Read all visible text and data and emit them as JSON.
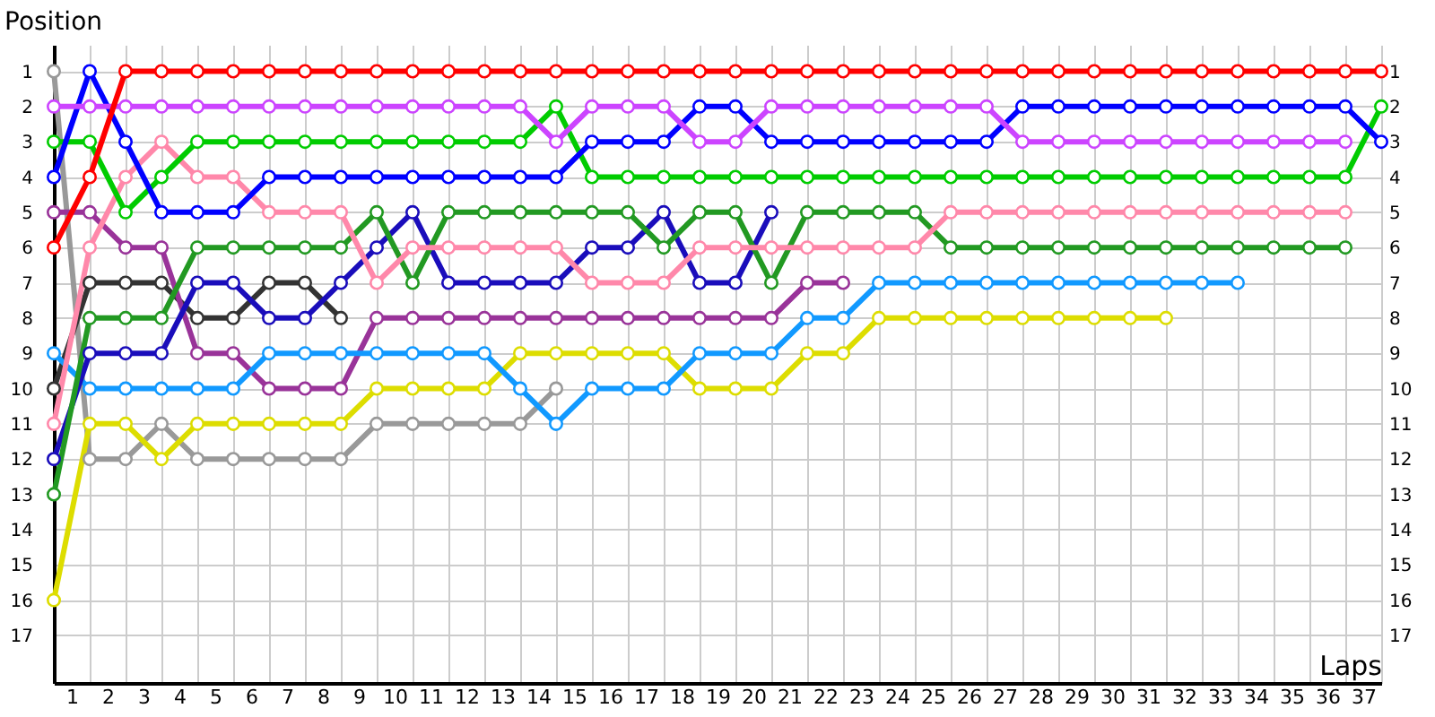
{
  "chart_data": {
    "type": "line",
    "ylabel": "Position",
    "xlabel": "Laps",
    "x": [
      0,
      1,
      2,
      3,
      4,
      5,
      6,
      7,
      8,
      9,
      10,
      11,
      12,
      13,
      14,
      15,
      16,
      17,
      18,
      19,
      20,
      21,
      22,
      23,
      24,
      25,
      26,
      27,
      28,
      29,
      30,
      31,
      32,
      33,
      34,
      35,
      36,
      37
    ],
    "xlim": [
      0,
      37
    ],
    "xticks": [
      {
        "value": 0,
        "label": null
      },
      {
        "value": 0.5,
        "label": "1"
      },
      {
        "value": 1,
        "label": null
      },
      {
        "value": 1.5,
        "label": "2"
      },
      {
        "value": 2,
        "label": null
      },
      {
        "value": 2.5,
        "label": "3"
      },
      {
        "value": 3,
        "label": null
      },
      {
        "value": 3.5,
        "label": "4"
      },
      {
        "value": 4,
        "label": null
      },
      {
        "value": 4.5,
        "label": "5"
      },
      {
        "value": 5,
        "label": null
      },
      {
        "value": 5.5,
        "label": "6"
      },
      {
        "value": 6,
        "label": null
      },
      {
        "value": 6.5,
        "label": "7"
      },
      {
        "value": 7,
        "label": null
      },
      {
        "value": 7.5,
        "label": "8"
      },
      {
        "value": 8,
        "label": null
      },
      {
        "value": 8.5,
        "label": "9"
      },
      {
        "value": 9,
        "label": null
      },
      {
        "value": 9.5,
        "label": "10"
      },
      {
        "value": 10,
        "label": null
      },
      {
        "value": 10.5,
        "label": "11"
      },
      {
        "value": 11,
        "label": null
      },
      {
        "value": 11.5,
        "label": "12"
      },
      {
        "value": 12,
        "label": null
      },
      {
        "value": 12.5,
        "label": "13"
      },
      {
        "value": 13,
        "label": null
      },
      {
        "value": 13.5,
        "label": "14"
      },
      {
        "value": 14,
        "label": null
      },
      {
        "value": 14.5,
        "label": "15"
      },
      {
        "value": 15,
        "label": null
      },
      {
        "value": 15.5,
        "label": "16"
      },
      {
        "value": 16,
        "label": null
      },
      {
        "value": 16.5,
        "label": "17"
      },
      {
        "value": 17,
        "label": null
      },
      {
        "value": 17.5,
        "label": "18"
      },
      {
        "value": 18,
        "label": null
      },
      {
        "value": 18.5,
        "label": "19"
      },
      {
        "value": 19,
        "label": null
      },
      {
        "value": 19.5,
        "label": "20"
      },
      {
        "value": 20,
        "label": null
      },
      {
        "value": 20.5,
        "label": "21"
      },
      {
        "value": 21,
        "label": null
      },
      {
        "value": 21.5,
        "label": "22"
      },
      {
        "value": 22,
        "label": null
      },
      {
        "value": 22.5,
        "label": "23"
      },
      {
        "value": 23,
        "label": null
      },
      {
        "value": 23.5,
        "label": "24"
      },
      {
        "value": 24,
        "label": null
      },
      {
        "value": 24.5,
        "label": "25"
      },
      {
        "value": 25,
        "label": null
      },
      {
        "value": 25.5,
        "label": "26"
      },
      {
        "value": 26,
        "label": null
      },
      {
        "value": 26.5,
        "label": "27"
      },
      {
        "value": 27,
        "label": null
      },
      {
        "value": 27.5,
        "label": "28"
      },
      {
        "value": 28,
        "label": null
      },
      {
        "value": 28.5,
        "label": "29"
      },
      {
        "value": 29,
        "label": null
      },
      {
        "value": 29.5,
        "label": "30"
      },
      {
        "value": 30,
        "label": null
      },
      {
        "value": 30.5,
        "label": "31"
      },
      {
        "value": 31,
        "label": null
      },
      {
        "value": 31.5,
        "label": "32"
      },
      {
        "value": 32,
        "label": null
      },
      {
        "value": 32.5,
        "label": "33"
      },
      {
        "value": 33,
        "label": null
      },
      {
        "value": 33.5,
        "label": "34"
      },
      {
        "value": 34,
        "label": null
      },
      {
        "value": 34.5,
        "label": "35"
      },
      {
        "value": 35,
        "label": null
      },
      {
        "value": 35.5,
        "label": "36"
      },
      {
        "value": 36,
        "label": null
      },
      {
        "value": 36.5,
        "label": "37"
      },
      {
        "value": 37,
        "label": null
      }
    ],
    "ylim": [
      18.35,
      0.25
    ],
    "yticks": [
      1,
      2,
      3,
      4,
      5,
      6,
      7,
      8,
      9,
      10,
      11,
      12,
      13,
      14,
      15,
      16,
      17
    ],
    "y2lim": [
      18.35,
      0.25
    ],
    "y2ticks": [
      1,
      2,
      3,
      4,
      5,
      6,
      7,
      8,
      9,
      10,
      11,
      12,
      13,
      14,
      15,
      16,
      17
    ],
    "grid": true,
    "marker": "circle",
    "line_style": "solid",
    "series": [
      {
        "color": "#999999",
        "values": [
          1,
          12,
          12,
          11,
          12,
          12,
          12,
          12,
          12,
          11,
          11,
          11,
          11,
          11,
          10,
          null,
          null,
          null,
          null,
          null,
          null,
          null,
          null,
          null,
          null,
          null,
          null,
          null,
          null,
          null,
          null,
          null,
          null,
          null,
          null,
          null,
          null,
          null
        ]
      },
      {
        "color": "#333333",
        "values": [
          10,
          7,
          7,
          7,
          8,
          8,
          7,
          7,
          8,
          null,
          null,
          null,
          null,
          null,
          null,
          null,
          null,
          null,
          null,
          null,
          null,
          null,
          null,
          null,
          null,
          null,
          null,
          null,
          null,
          null,
          null,
          null,
          null,
          null,
          null,
          null,
          null,
          null
        ]
      },
      {
        "color": "#993399",
        "values": [
          5,
          5,
          6,
          6,
          9,
          9,
          10,
          10,
          10,
          8,
          8,
          8,
          8,
          8,
          8,
          8,
          8,
          8,
          8,
          8,
          8,
          7,
          7,
          null,
          null,
          null,
          null,
          null,
          null,
          null,
          null,
          null,
          null,
          null,
          null,
          null,
          null,
          null
        ]
      },
      {
        "color": "#dddd00",
        "values": [
          16,
          11,
          11,
          12,
          11,
          11,
          11,
          11,
          11,
          10,
          10,
          10,
          10,
          9,
          9,
          9,
          9,
          9,
          10,
          10,
          10,
          9,
          9,
          8,
          8,
          8,
          8,
          8,
          8,
          8,
          8,
          8,
          null,
          null,
          null,
          null,
          null,
          null
        ]
      },
      {
        "color": "#1199ff",
        "values": [
          9,
          10,
          10,
          10,
          10,
          10,
          9,
          9,
          9,
          9,
          9,
          9,
          9,
          10,
          11,
          10,
          10,
          10,
          9,
          9,
          9,
          8,
          8,
          7,
          7,
          7,
          7,
          7,
          7,
          7,
          7,
          7,
          7,
          7,
          null,
          null,
          null,
          null
        ]
      },
      {
        "color": "#1a0dbb",
        "values": [
          12,
          9,
          9,
          9,
          7,
          7,
          8,
          8,
          7,
          6,
          5,
          7,
          7,
          7,
          7,
          6,
          6,
          5,
          7,
          7,
          5,
          null,
          null,
          null,
          null,
          null,
          null,
          null,
          null,
          null,
          null,
          null,
          null,
          null,
          null,
          null,
          null,
          null
        ]
      },
      {
        "color": "#229922",
        "values": [
          13,
          8,
          8,
          8,
          6,
          6,
          6,
          6,
          6,
          5,
          7,
          5,
          5,
          5,
          5,
          5,
          5,
          6,
          5,
          5,
          7,
          5,
          5,
          5,
          5,
          6,
          6,
          6,
          6,
          6,
          6,
          6,
          6,
          6,
          6,
          6,
          6,
          null
        ]
      },
      {
        "color": "#ff88aa",
        "values": [
          11,
          6,
          4,
          3,
          4,
          4,
          5,
          5,
          5,
          7,
          6,
          6,
          6,
          6,
          6,
          7,
          7,
          7,
          6,
          6,
          6,
          6,
          6,
          6,
          6,
          5,
          5,
          5,
          5,
          5,
          5,
          5,
          5,
          5,
          5,
          5,
          5,
          null
        ]
      },
      {
        "color": "#00cc00",
        "values": [
          3,
          3,
          5,
          4,
          3,
          3,
          3,
          3,
          3,
          3,
          3,
          3,
          3,
          3,
          2,
          4,
          4,
          4,
          4,
          4,
          4,
          4,
          4,
          4,
          4,
          4,
          4,
          4,
          4,
          4,
          4,
          4,
          4,
          4,
          4,
          4,
          4,
          2
        ]
      },
      {
        "color": "#0000ff",
        "values": [
          4,
          1,
          3,
          5,
          5,
          5,
          4,
          4,
          4,
          4,
          4,
          4,
          4,
          4,
          4,
          3,
          3,
          3,
          2,
          2,
          3,
          3,
          3,
          3,
          3,
          3,
          3,
          2,
          2,
          2,
          2,
          2,
          2,
          2,
          2,
          2,
          2,
          3
        ]
      },
      {
        "color": "#cc44ff",
        "values": [
          2,
          2,
          2,
          2,
          2,
          2,
          2,
          2,
          2,
          2,
          2,
          2,
          2,
          2,
          3,
          2,
          2,
          2,
          3,
          3,
          2,
          2,
          2,
          2,
          2,
          2,
          2,
          3,
          3,
          3,
          3,
          3,
          3,
          3,
          3,
          3,
          3,
          null
        ]
      },
      {
        "color": "#ff0000",
        "values": [
          6,
          4,
          1,
          1,
          1,
          1,
          1,
          1,
          1,
          1,
          1,
          1,
          1,
          1,
          1,
          1,
          1,
          1,
          1,
          1,
          1,
          1,
          1,
          1,
          1,
          1,
          1,
          1,
          1,
          1,
          1,
          1,
          1,
          1,
          1,
          1,
          1,
          1
        ]
      }
    ]
  }
}
